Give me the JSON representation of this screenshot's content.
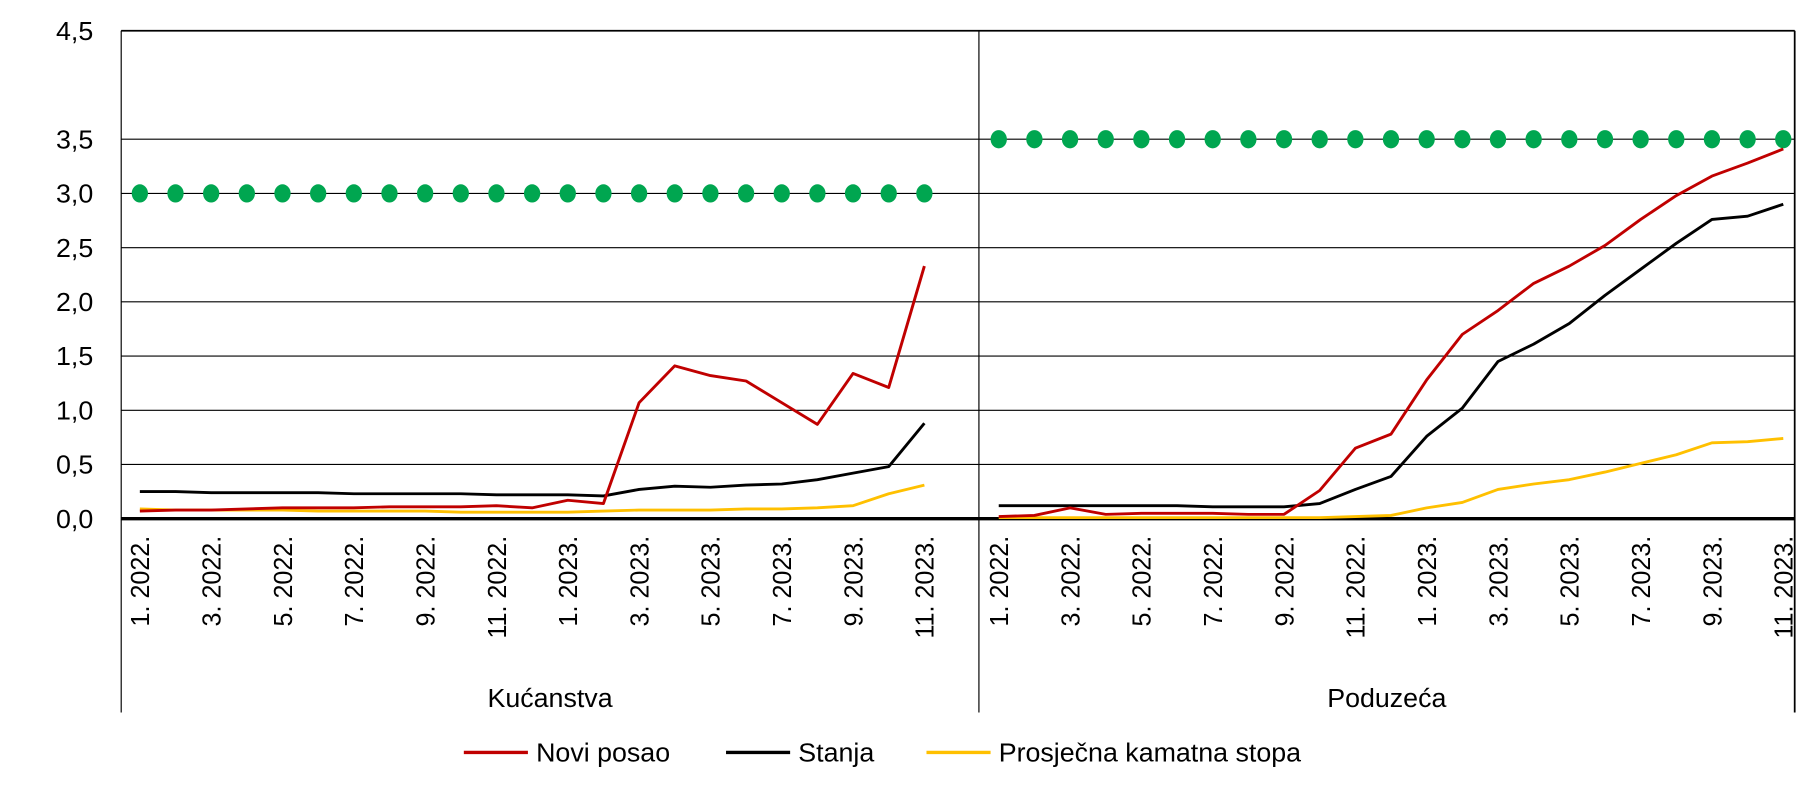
{
  "chart_data": {
    "type": "line",
    "ylim": [
      0,
      4.5
    ],
    "yticks": [
      "0,0",
      "0,5",
      "1,0",
      "1,5",
      "2,0",
      "2,5",
      "3,0",
      "3,5",
      "4,5"
    ],
    "ytick_values": [
      0,
      0.5,
      1,
      1.5,
      2,
      2.5,
      3,
      3.5,
      4.5
    ],
    "grid": true,
    "legend_position": "bottom",
    "colors": {
      "Novi posao": "#c00000",
      "Stanja": "#000000",
      "Prosječna kamatna stopa": "#ffc000",
      "reference": "#00a650"
    },
    "months": [
      "1. 2022.",
      "2. 2022.",
      "3. 2022.",
      "4. 2022.",
      "5. 2022.",
      "6. 2022.",
      "7. 2022.",
      "8. 2022.",
      "9. 2022.",
      "10. 2022.",
      "11. 2022.",
      "12. 2022.",
      "1. 2023.",
      "2. 2023.",
      "3. 2023.",
      "4. 2023.",
      "5. 2023.",
      "6. 2023.",
      "7. 2023.",
      "8. 2023.",
      "9. 2023.",
      "10. 2023.",
      "11. 2023."
    ],
    "xtick_labels": [
      "1. 2022.",
      "3. 2022.",
      "5. 2022.",
      "7. 2022.",
      "9. 2022.",
      "11. 2022.",
      "1. 2023.",
      "3. 2023.",
      "5. 2023.",
      "7. 2023.",
      "9. 2023.",
      "11. 2023."
    ],
    "legend": [
      "Novi posao",
      "Stanja",
      "Prosječna kamatna stopa"
    ],
    "panels": [
      {
        "name": "Kućanstva",
        "series": [
          {
            "name": "Novi posao",
            "values": [
              0.07,
              0.08,
              0.08,
              0.09,
              0.1,
              0.1,
              0.1,
              0.11,
              0.11,
              0.11,
              0.12,
              0.1,
              0.17,
              0.14,
              1.07,
              1.41,
              1.32,
              1.27,
              1.07,
              0.87,
              1.34,
              1.21,
              2.33
            ]
          },
          {
            "name": "Stanja",
            "values": [
              0.25,
              0.25,
              0.24,
              0.24,
              0.24,
              0.24,
              0.23,
              0.23,
              0.23,
              0.23,
              0.22,
              0.22,
              0.22,
              0.21,
              0.27,
              0.3,
              0.29,
              0.31,
              0.32,
              0.36,
              0.42,
              0.48,
              0.88
            ]
          },
          {
            "name": "Prosječna kamatna stopa",
            "values": [
              0.09,
              0.08,
              0.08,
              0.08,
              0.08,
              0.07,
              0.07,
              0.07,
              0.07,
              0.06,
              0.06,
              0.06,
              0.06,
              0.07,
              0.08,
              0.08,
              0.08,
              0.09,
              0.09,
              0.1,
              0.12,
              0.23,
              0.31
            ]
          }
        ],
        "reference": 3.0
      },
      {
        "name": "Poduzeća",
        "series": [
          {
            "name": "Novi posao",
            "values": [
              0.02,
              0.03,
              0.1,
              0.04,
              0.05,
              0.05,
              0.05,
              0.04,
              0.04,
              0.26,
              0.65,
              0.78,
              1.28,
              1.7,
              1.92,
              2.17,
              2.33,
              2.52,
              2.76,
              2.98,
              3.16,
              3.28,
              3.41
            ]
          },
          {
            "name": "Stanja",
            "values": [
              0.12,
              0.12,
              0.12,
              0.12,
              0.12,
              0.12,
              0.11,
              0.11,
              0.11,
              0.14,
              0.27,
              0.39,
              0.76,
              1.02,
              1.45,
              1.61,
              1.8,
              2.06,
              2.3,
              2.54,
              2.76,
              2.79,
              2.9
            ]
          },
          {
            "name": "Prosječna kamatna stopa",
            "values": [
              0.01,
              0.01,
              0.01,
              0.01,
              0.01,
              0.01,
              0.01,
              0.01,
              0.01,
              0.01,
              0.02,
              0.03,
              0.1,
              0.15,
              0.27,
              0.32,
              0.36,
              0.43,
              0.51,
              0.59,
              0.7,
              0.71,
              0.74
            ]
          }
        ],
        "reference": 3.5
      }
    ]
  }
}
